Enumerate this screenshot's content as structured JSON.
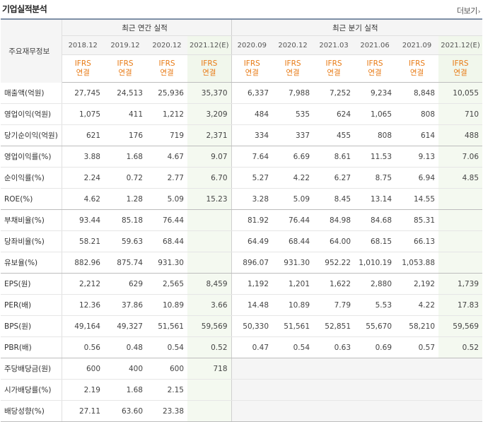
{
  "title": "기업실적분석",
  "more_label": "더보기",
  "header": {
    "label_column": "주요재무정보",
    "annual_group": "최근 연간 실적",
    "quarter_group": "최근 분기 실적",
    "annual_periods": [
      "2018.12",
      "2019.12",
      "2020.12",
      "2021.12(E)"
    ],
    "quarter_periods": [
      "2020.09",
      "2020.12",
      "2021.03",
      "2021.06",
      "2021.09",
      "2021.12(E)"
    ],
    "method_line1": "IFRS",
    "method_line2": "연결"
  },
  "rows": [
    {
      "label": "매출액(억원)",
      "annual": [
        "27,745",
        "24,513",
        "25,936",
        "35,370"
      ],
      "quarter": [
        "6,337",
        "7,988",
        "7,252",
        "9,234",
        "8,848",
        "10,055"
      ]
    },
    {
      "label": "영업이익(억원)",
      "annual": [
        "1,075",
        "411",
        "1,212",
        "3,209"
      ],
      "quarter": [
        "484",
        "535",
        "624",
        "1,065",
        "808",
        "710"
      ]
    },
    {
      "label": "당기순이익(억원)",
      "annual": [
        "621",
        "176",
        "719",
        "2,371"
      ],
      "quarter": [
        "334",
        "337",
        "455",
        "808",
        "614",
        "488"
      ]
    },
    {
      "label": "영업이익률(%)",
      "annual": [
        "3.88",
        "1.68",
        "4.67",
        "9.07"
      ],
      "quarter": [
        "7.64",
        "6.69",
        "8.61",
        "11.53",
        "9.13",
        "7.06"
      ]
    },
    {
      "label": "순이익률(%)",
      "annual": [
        "2.24",
        "0.72",
        "2.77",
        "6.70"
      ],
      "quarter": [
        "5.27",
        "4.22",
        "6.27",
        "8.75",
        "6.94",
        "4.85"
      ]
    },
    {
      "label": "ROE(%)",
      "annual": [
        "4.62",
        "1.28",
        "5.09",
        "15.23"
      ],
      "quarter": [
        "3.28",
        "5.09",
        "8.45",
        "13.14",
        "14.55",
        ""
      ]
    },
    {
      "label": "부채비율(%)",
      "annual": [
        "93.44",
        "85.18",
        "76.44",
        ""
      ],
      "quarter": [
        "81.92",
        "76.44",
        "84.98",
        "84.68",
        "85.31",
        ""
      ]
    },
    {
      "label": "당좌비율(%)",
      "annual": [
        "58.21",
        "59.63",
        "68.44",
        ""
      ],
      "quarter": [
        "64.49",
        "68.44",
        "64.00",
        "68.15",
        "66.13",
        ""
      ]
    },
    {
      "label": "유보율(%)",
      "annual": [
        "882.96",
        "875.74",
        "931.30",
        ""
      ],
      "quarter": [
        "896.07",
        "931.30",
        "952.22",
        "1,010.19",
        "1,053.88",
        ""
      ]
    },
    {
      "label": "EPS(원)",
      "annual": [
        "2,212",
        "629",
        "2,565",
        "8,459"
      ],
      "quarter": [
        "1,192",
        "1,201",
        "1,622",
        "2,880",
        "2,192",
        "1,739"
      ]
    },
    {
      "label": "PER(배)",
      "annual": [
        "12.36",
        "37.86",
        "10.89",
        "3.66"
      ],
      "quarter": [
        "14.48",
        "10.89",
        "7.79",
        "5.53",
        "4.22",
        "17.83"
      ]
    },
    {
      "label": "BPS(원)",
      "annual": [
        "49,164",
        "49,327",
        "51,561",
        "59,569"
      ],
      "quarter": [
        "50,330",
        "51,561",
        "52,851",
        "55,670",
        "58,210",
        "59,569"
      ]
    },
    {
      "label": "PBR(배)",
      "annual": [
        "0.56",
        "0.48",
        "0.54",
        "0.52"
      ],
      "quarter": [
        "0.47",
        "0.54",
        "0.63",
        "0.69",
        "0.57",
        "0.52"
      ]
    },
    {
      "label": "주당배당금(원)",
      "annual": [
        "600",
        "400",
        "600",
        "718"
      ],
      "quarter": [
        "",
        "",
        "",
        "",
        "",
        ""
      ]
    },
    {
      "label": "시가배당률(%)",
      "annual": [
        "2.19",
        "1.68",
        "2.15",
        ""
      ],
      "quarter": [
        "",
        "",
        "",
        "",
        "",
        ""
      ]
    },
    {
      "label": "배당성향(%)",
      "annual": [
        "27.11",
        "63.60",
        "23.38",
        ""
      ],
      "quarter": [
        "",
        "",
        "",
        "",
        "",
        ""
      ]
    }
  ]
}
